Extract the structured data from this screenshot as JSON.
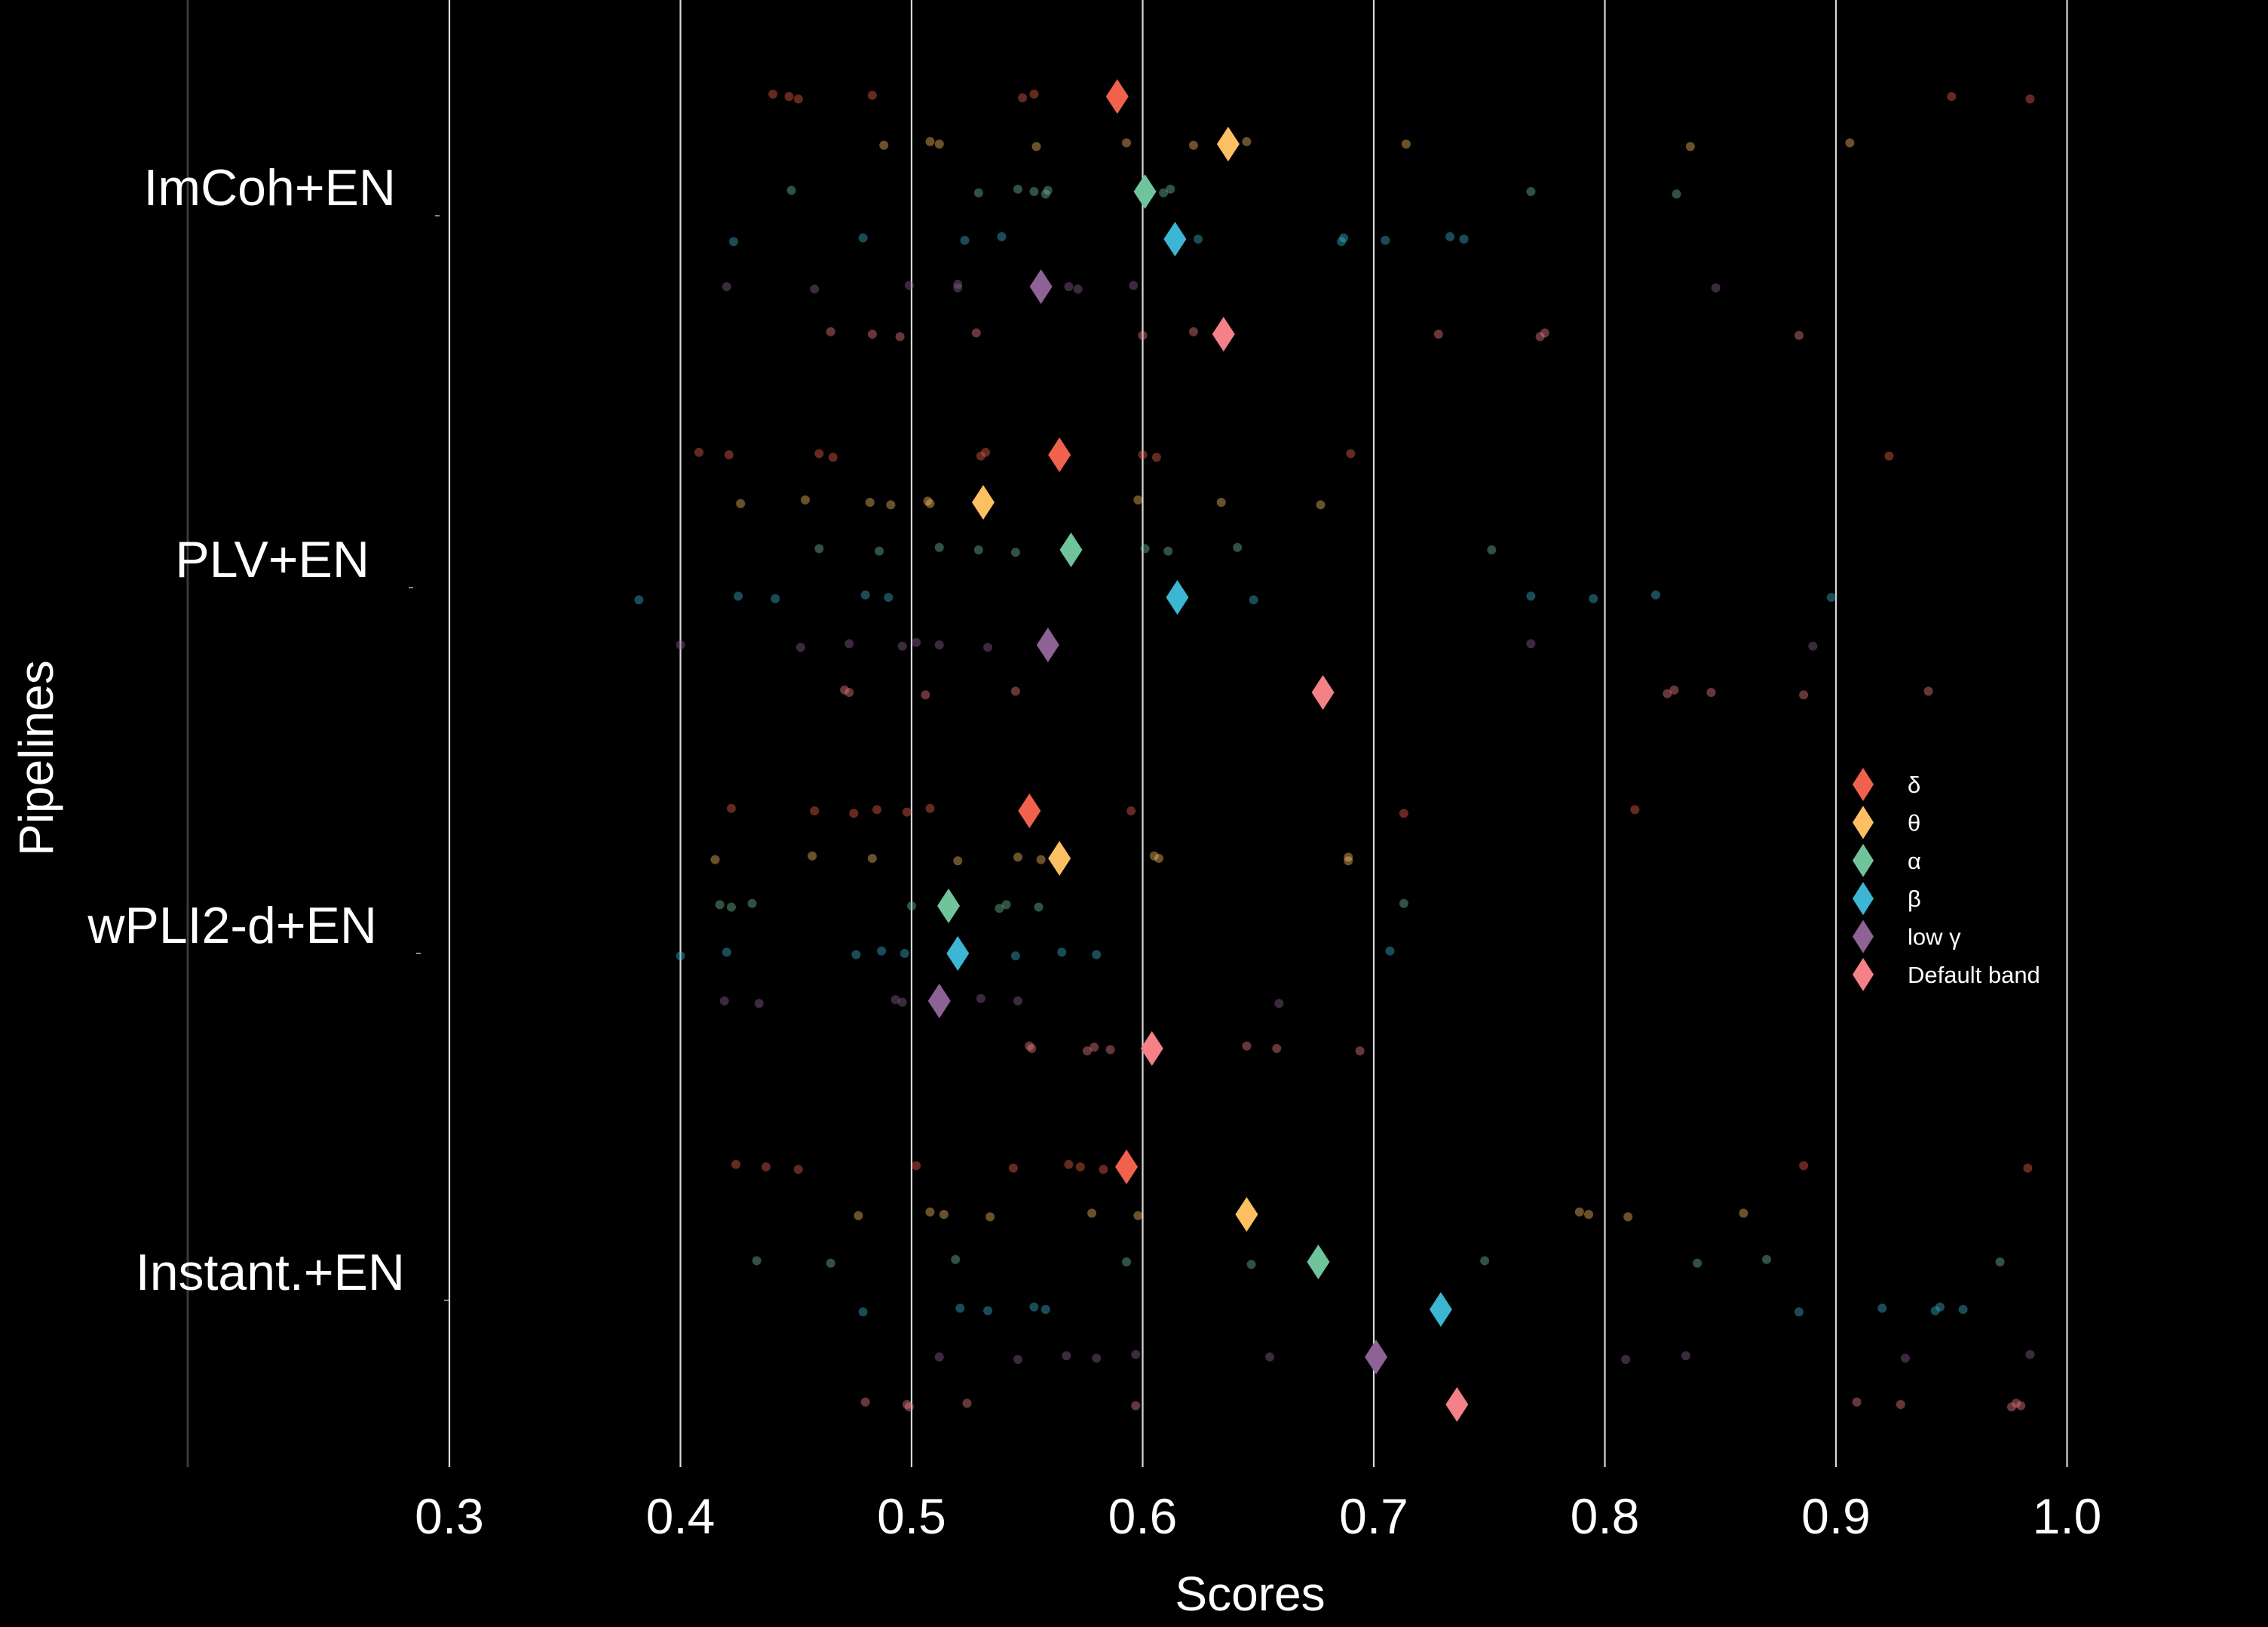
{
  "chart_data": {
    "type": "scatter",
    "title": "",
    "xlabel": "Scores",
    "ylabel": "Pipelines",
    "xlim": [
      0.3,
      1.0
    ],
    "xticks": [
      "0.3",
      "0.4",
      "0.5",
      "0.6",
      "0.7",
      "0.8",
      "0.9",
      "1.0"
    ],
    "grid": "vertical",
    "legend_position": "right",
    "categories": [
      "ImCoh+EN",
      "PLV+EN",
      "wPLI2-d+EN",
      "Instant.+EN"
    ],
    "series": [
      {
        "name": "δ",
        "color": "#f0624b",
        "means": [
          0.589,
          0.564,
          0.551,
          0.593
        ]
      },
      {
        "name": "θ",
        "color": "#fcc063",
        "means": [
          0.637,
          0.531,
          0.564,
          0.645
        ]
      },
      {
        "name": "α",
        "color": "#6fc49b",
        "means": [
          0.601,
          0.569,
          0.516,
          0.676
        ]
      },
      {
        "name": "β",
        "color": "#3cb6d2",
        "means": [
          0.614,
          0.615,
          0.52,
          0.729
        ]
      },
      {
        "name": "low γ",
        "color": "#8d6294",
        "means": [
          0.556,
          0.559,
          0.512,
          0.701
        ]
      },
      {
        "name": "Default band",
        "color": "#f48088",
        "means": [
          0.635,
          0.678,
          0.604,
          0.736
        ]
      }
    ],
    "points": [
      [
        [
          0.44,
          0.447,
          0.451,
          0.483,
          0.548,
          0.553,
          0.95,
          0.984
        ],
        [
          0.488,
          0.508,
          0.512,
          0.554,
          0.593,
          0.622,
          0.645,
          0.714,
          0.837,
          0.906
        ],
        [
          0.448,
          0.529,
          0.546,
          0.553,
          0.558,
          0.559,
          0.609,
          0.612,
          0.768,
          0.831
        ],
        [
          0.423,
          0.479,
          0.523,
          0.539,
          0.624,
          0.686,
          0.687,
          0.705,
          0.733,
          0.739
        ],
        [
          0.42,
          0.458,
          0.499,
          0.52,
          0.52,
          0.568,
          0.572,
          0.596,
          0.848
        ],
        [
          0.465,
          0.483,
          0.495,
          0.528,
          0.6,
          0.622,
          0.728,
          0.772,
          0.774,
          0.884
        ]
      ],
      [
        [
          0.408,
          0.421,
          0.466,
          0.46,
          0.53,
          0.532,
          0.6,
          0.606,
          0.69,
          0.923
        ],
        [
          0.426,
          0.454,
          0.482,
          0.491,
          0.507,
          0.508,
          0.598,
          0.634,
          0.677
        ],
        [
          0.46,
          0.486,
          0.512,
          0.529,
          0.545,
          0.601,
          0.611,
          0.641,
          0.751
        ],
        [
          0.382,
          0.425,
          0.441,
          0.48,
          0.49,
          0.648,
          0.768,
          0.795,
          0.822,
          0.898
        ],
        [
          0.4,
          0.452,
          0.473,
          0.496,
          0.502,
          0.512,
          0.533,
          0.768,
          0.89
        ],
        [
          0.471,
          0.473,
          0.506,
          0.545,
          0.827,
          0.83,
          0.846,
          0.886,
          0.94
        ]
      ],
      [
        [
          0.422,
          0.458,
          0.475,
          0.485,
          0.498,
          0.508,
          0.595,
          0.713,
          0.813
        ],
        [
          0.415,
          0.457,
          0.483,
          0.52,
          0.546,
          0.556,
          0.605,
          0.607,
          0.689,
          0.689
        ],
        [
          0.417,
          0.422,
          0.431,
          0.5,
          0.538,
          0.541,
          0.555,
          0.713
        ],
        [
          0.4,
          0.42,
          0.476,
          0.487,
          0.497,
          0.545,
          0.565,
          0.58,
          0.707
        ],
        [
          0.419,
          0.434,
          0.493,
          0.496,
          0.53,
          0.546,
          0.659
        ],
        [
          0.551,
          0.552,
          0.576,
          0.579,
          0.586,
          0.645,
          0.658,
          0.694
        ]
      ],
      [
        [
          0.424,
          0.437,
          0.451,
          0.502,
          0.544,
          0.568,
          0.573,
          0.583,
          0.886,
          0.983
        ],
        [
          0.477,
          0.508,
          0.514,
          0.534,
          0.578,
          0.598,
          0.789,
          0.793,
          0.81,
          0.86
        ],
        [
          0.433,
          0.465,
          0.519,
          0.593,
          0.647,
          0.748,
          0.84,
          0.87,
          0.971
        ],
        [
          0.479,
          0.521,
          0.533,
          0.553,
          0.558,
          0.884,
          0.92,
          0.943,
          0.945,
          0.955
        ],
        [
          0.512,
          0.546,
          0.567,
          0.58,
          0.597,
          0.655,
          0.809,
          0.835,
          0.93,
          0.984
        ],
        [
          0.48,
          0.498,
          0.499,
          0.524,
          0.597,
          0.909,
          0.928,
          0.976,
          0.978,
          0.98
        ]
      ]
    ]
  }
}
